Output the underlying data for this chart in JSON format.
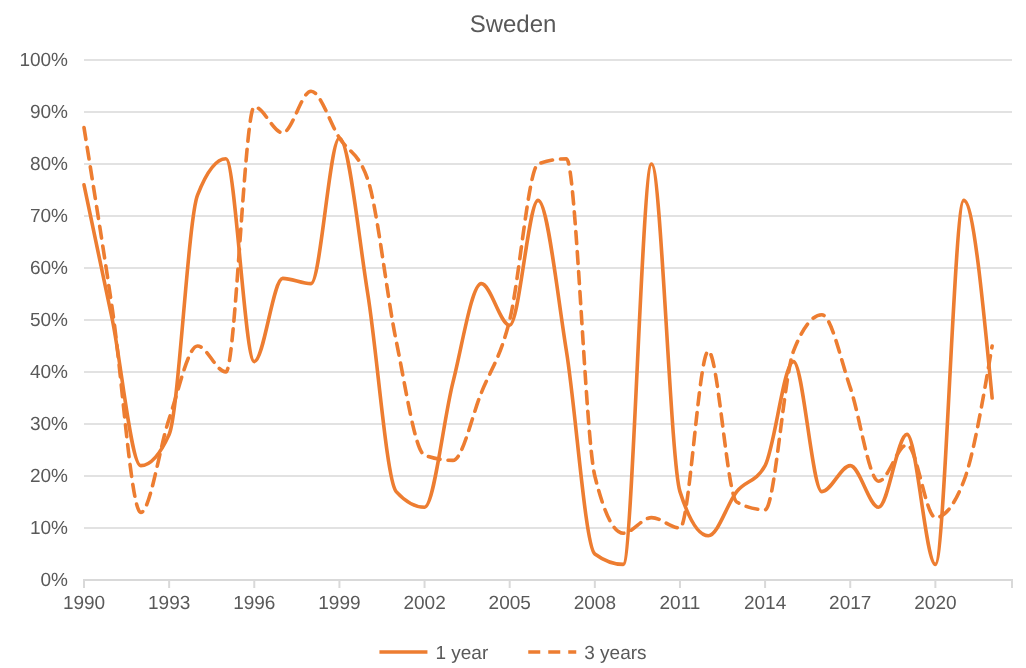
{
  "chart_data": {
    "type": "line",
    "title": "Sweden",
    "x": [
      1990,
      1991,
      1992,
      1993,
      1994,
      1995,
      1996,
      1997,
      1998,
      1999,
      2000,
      2001,
      2002,
      2003,
      2004,
      2005,
      2006,
      2007,
      2008,
      2009,
      2010,
      2011,
      2012,
      2013,
      2014,
      2015,
      2016,
      2017,
      2018,
      2019,
      2020,
      2021,
      2022
    ],
    "xlim": [
      1990,
      2022.7
    ],
    "xticks": [
      1990,
      1993,
      1996,
      1999,
      2002,
      2005,
      2008,
      2011,
      2014,
      2017,
      2020
    ],
    "ylim": [
      0,
      1
    ],
    "yticks": [
      {
        "value": 0,
        "label": "0%"
      },
      {
        "value": 0.1,
        "label": "10%"
      },
      {
        "value": 0.2,
        "label": "20%"
      },
      {
        "value": 0.3,
        "label": "30%"
      },
      {
        "value": 0.4,
        "label": "40%"
      },
      {
        "value": 0.5,
        "label": "50%"
      },
      {
        "value": 0.6,
        "label": "60%"
      },
      {
        "value": 0.7,
        "label": "70%"
      },
      {
        "value": 0.8,
        "label": "80%"
      },
      {
        "value": 0.9,
        "label": "90%"
      },
      {
        "value": 1,
        "label": "100%"
      }
    ],
    "series": [
      {
        "name": "1 year",
        "color": "#ed7d31",
        "line_style": "solid",
        "values": [
          0.76,
          0.5,
          0.22,
          0.28,
          0.74,
          0.81,
          0.42,
          0.58,
          0.57,
          0.85,
          0.55,
          0.17,
          0.14,
          0.38,
          0.57,
          0.49,
          0.73,
          0.44,
          0.05,
          0.03,
          0.8,
          0.17,
          0.085,
          0.17,
          0.22,
          0.42,
          0.17,
          0.22,
          0.14,
          0.28,
          0.03,
          0.73,
          0.35
        ]
      },
      {
        "name": "3 years",
        "color": "#ed7d31",
        "line_style": "dashed",
        "values": [
          0.87,
          0.52,
          0.13,
          0.31,
          0.45,
          0.4,
          0.91,
          0.86,
          0.94,
          0.85,
          0.77,
          0.46,
          0.24,
          0.23,
          0.36,
          0.5,
          0.8,
          0.81,
          0.2,
          0.09,
          0.12,
          0.1,
          0.44,
          0.15,
          0.135,
          0.44,
          0.51,
          0.37,
          0.19,
          0.26,
          0.12,
          0.19,
          0.45
        ]
      }
    ],
    "grid": "y",
    "legend": "bottom",
    "marker": "none"
  }
}
